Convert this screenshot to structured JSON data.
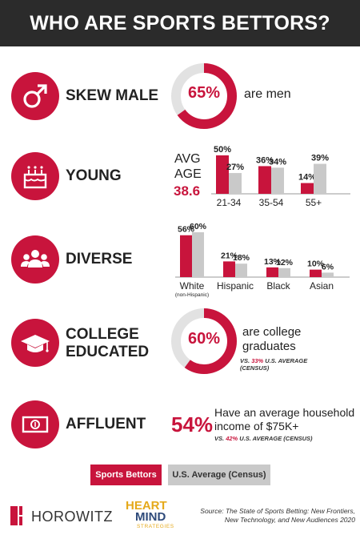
{
  "header": {
    "title": "WHO ARE SPORTS BETTORS?"
  },
  "colors": {
    "primary": "#c8143c",
    "secondary": "#c9c9c9",
    "dark": "#2b2b2b"
  },
  "rows": {
    "male": {
      "label": "SKEW MALE",
      "icon": "male-symbol-icon",
      "value": "65%",
      "fraction": 0.65,
      "text": "are men"
    },
    "young": {
      "label": "YOUNG",
      "icon": "birthday-cake-icon",
      "avg_label_1": "AVG",
      "avg_label_2": "AGE",
      "avg_value": "38.6"
    },
    "diverse": {
      "label": "DIVERSE",
      "icon": "group-people-icon"
    },
    "college": {
      "label_1": "COLLEGE",
      "label_2": "EDUCATED",
      "icon": "graduation-cap-icon",
      "value": "60%",
      "fraction": 0.6,
      "text_1": "are college",
      "text_2": "graduates",
      "vs_1": "VS. ",
      "vs_pct": "33%",
      "vs_2": " U.S. AVERAGE",
      "vs_3": "(CENSUS)"
    },
    "affluent": {
      "label": "AFFLUENT",
      "icon": "money-bill-icon",
      "value": "54%",
      "text_1": "Have an average household",
      "text_2": "income of $75K+",
      "vs_1": "VS. ",
      "vs_pct": "42%",
      "vs_2": " U.S. AVERAGE (CENSUS)"
    }
  },
  "legend": {
    "primary": "Sports Bettors",
    "secondary": "U.S. Average (Census)"
  },
  "footer": {
    "horowitz": "HOROWITZ",
    "hm_1": "HEART",
    "hm_2": "MIND",
    "hm_3": "STRATEGIES",
    "source_1": "Source: The State of Sports Betting: New Frontiers,",
    "source_2": "New Technology, and New Audiences 2020"
  },
  "chart_data": [
    {
      "type": "bar",
      "categories": [
        "21-34",
        "35-54",
        "55+"
      ],
      "series": [
        {
          "name": "Sports Bettors",
          "values": [
            50,
            36,
            14
          ],
          "labels": [
            "50%",
            "36%",
            "14%"
          ]
        },
        {
          "name": "U.S. Average (Census)",
          "values": [
            27,
            34,
            39
          ],
          "labels": [
            "27%",
            "34%",
            "39%"
          ]
        }
      ],
      "ylim": [
        0,
        50
      ]
    },
    {
      "type": "bar",
      "categories": [
        "White",
        "Hispanic",
        "Black",
        "Asian"
      ],
      "category_notes": [
        "(non-Hispanic)",
        "",
        "",
        ""
      ],
      "series": [
        {
          "name": "Sports Bettors",
          "values": [
            56,
            21,
            13,
            10
          ],
          "labels": [
            "56%",
            "21%",
            "13%",
            "10%"
          ]
        },
        {
          "name": "U.S. Average (Census)",
          "values": [
            60,
            18,
            12,
            6
          ],
          "labels": [
            "60%",
            "18%",
            "12%",
            "6%"
          ]
        }
      ],
      "ylim": [
        0,
        60
      ]
    }
  ]
}
